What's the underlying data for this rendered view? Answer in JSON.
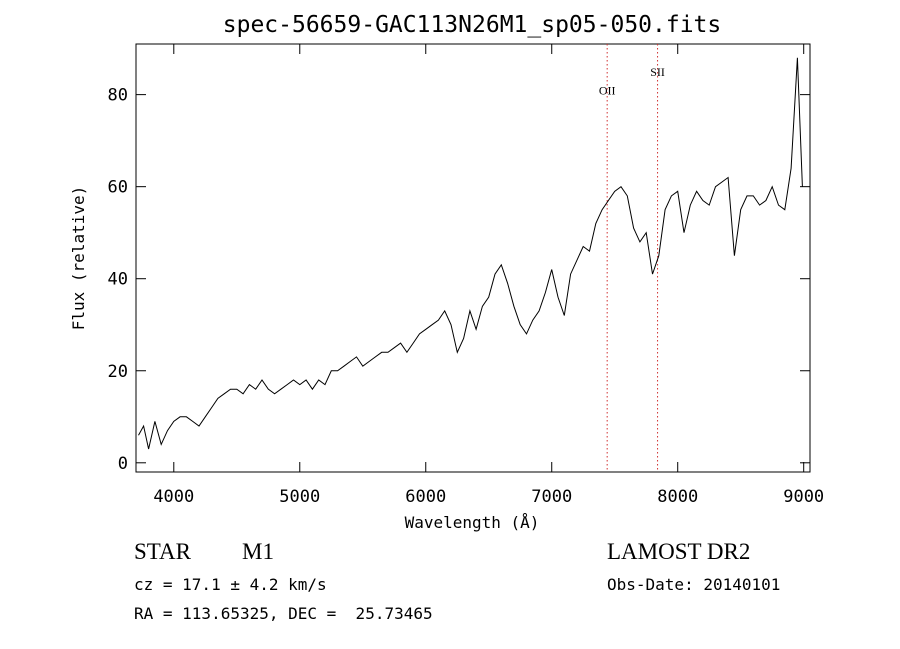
{
  "chart_data": {
    "type": "line",
    "title": "spec-56659-GAC113N26M1_sp05-050.fits",
    "xlabel": "Wavelength (Å)",
    "ylabel": "Flux (relative)",
    "xlim": [
      3700,
      9050
    ],
    "ylim": [
      -2,
      91
    ],
    "xticks": [
      4000,
      5000,
      6000,
      7000,
      8000,
      9000
    ],
    "yticks": [
      0,
      20,
      40,
      60,
      80
    ],
    "grid": false,
    "series": [
      {
        "color": "#000000",
        "x": [
          3720,
          3760,
          3800,
          3850,
          3900,
          3950,
          4000,
          4050,
          4100,
          4150,
          4200,
          4250,
          4300,
          4350,
          4400,
          4450,
          4500,
          4550,
          4600,
          4650,
          4700,
          4750,
          4800,
          4850,
          4900,
          4950,
          5000,
          5050,
          5100,
          5150,
          5200,
          5250,
          5300,
          5350,
          5400,
          5450,
          5500,
          5550,
          5600,
          5650,
          5700,
          5750,
          5800,
          5850,
          5900,
          5950,
          6000,
          6050,
          6100,
          6150,
          6200,
          6250,
          6300,
          6350,
          6400,
          6450,
          6500,
          6550,
          6600,
          6650,
          6700,
          6750,
          6800,
          6850,
          6900,
          6950,
          7000,
          7050,
          7100,
          7150,
          7200,
          7250,
          7300,
          7350,
          7400,
          7450,
          7500,
          7550,
          7600,
          7650,
          7700,
          7750,
          7800,
          7850,
          7900,
          7950,
          8000,
          8050,
          8100,
          8150,
          8200,
          8250,
          8300,
          8350,
          8400,
          8450,
          8500,
          8550,
          8600,
          8650,
          8700,
          8750,
          8800,
          8850,
          8900,
          8950,
          8990
        ],
        "y": [
          6,
          8,
          3,
          9,
          4,
          7,
          9,
          10,
          10,
          9,
          8,
          10,
          12,
          14,
          15,
          16,
          16,
          15,
          17,
          16,
          18,
          16,
          15,
          16,
          17,
          18,
          17,
          18,
          16,
          18,
          17,
          20,
          20,
          21,
          22,
          23,
          21,
          22,
          23,
          24,
          24,
          25,
          26,
          24,
          26,
          28,
          29,
          30,
          31,
          33,
          30,
          24,
          27,
          33,
          29,
          34,
          36,
          41,
          43,
          39,
          34,
          30,
          28,
          31,
          33,
          37,
          42,
          36,
          32,
          41,
          44,
          47,
          46,
          52,
          55,
          57,
          59,
          60,
          58,
          51,
          48,
          50,
          41,
          45,
          55,
          58,
          59,
          50,
          56,
          59,
          57,
          56,
          60,
          61,
          62,
          45,
          55,
          58,
          58,
          56,
          57,
          60,
          56,
          55,
          64,
          88,
          60
        ]
      }
    ],
    "annotations": [
      {
        "label": "OII",
        "x": 7440,
        "label_y": 80
      },
      {
        "label": "SII",
        "x": 7840,
        "label_y": 84
      }
    ]
  },
  "info": {
    "object_class": "STAR",
    "subclass": "M1",
    "survey": "LAMOST DR2",
    "cz": "cz = 17.1 ± 4.2 km/s",
    "obs_date": "Obs-Date: 20140101",
    "coords": "RA = 113.65325, DEC =  25.73465"
  }
}
